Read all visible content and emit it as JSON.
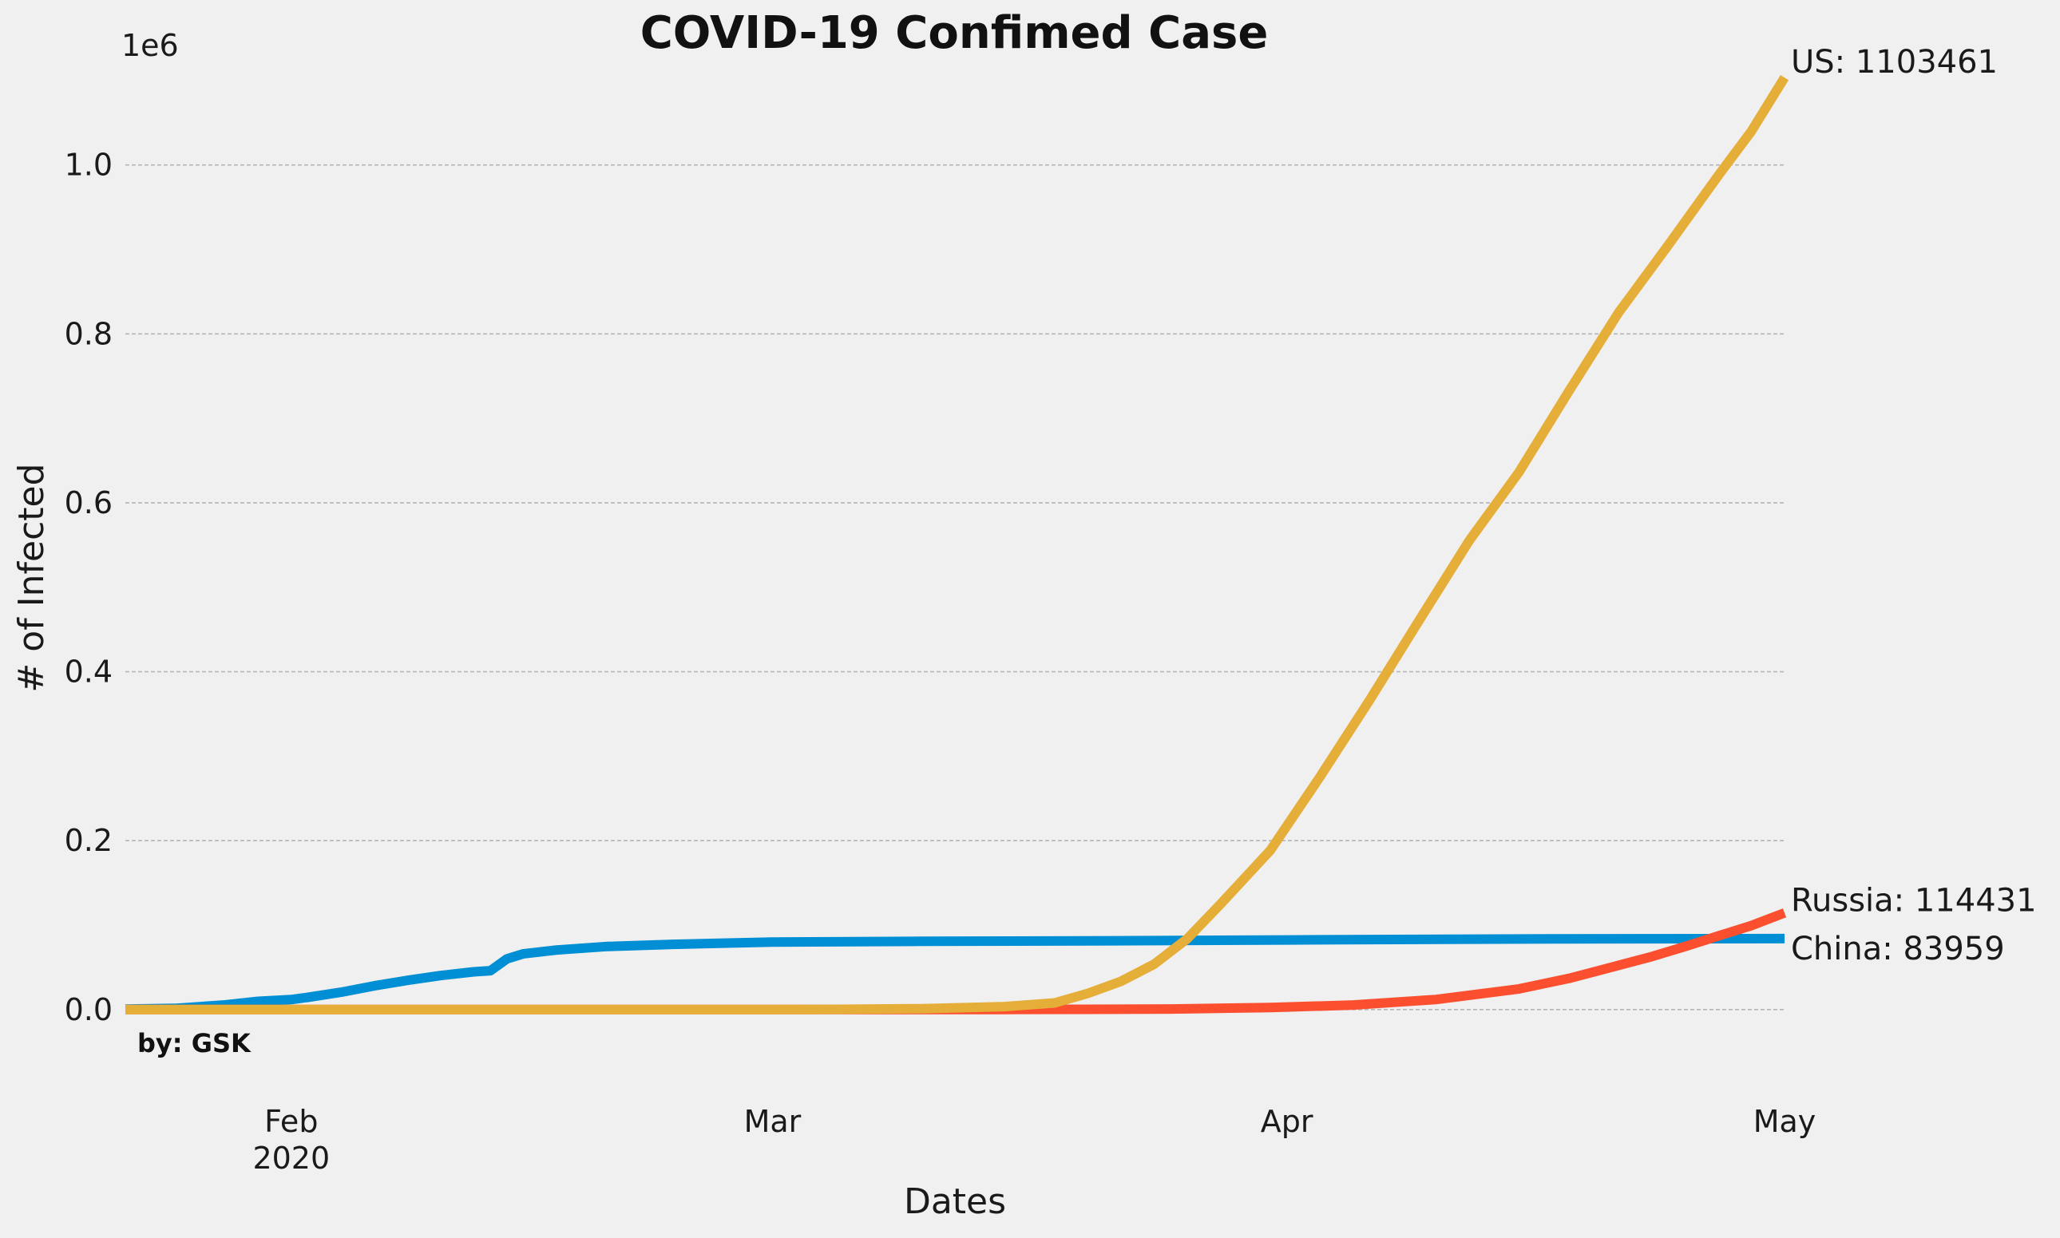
{
  "chart_data": {
    "type": "line",
    "title": "COVID-19 Confimed Case",
    "xlabel": "Dates",
    "ylabel": "# of Infected",
    "y_multiplier_label": "1e6",
    "credit": "by: GSK",
    "x_range": [
      "2020-01-22",
      "2020-05-01"
    ],
    "ylim": [
      -90000,
      1150000
    ],
    "grid": "horizontal",
    "x_ticks": [
      {
        "date": "2020-02-01",
        "label": "Feb",
        "sublabel": "2020"
      },
      {
        "date": "2020-03-01",
        "label": "Mar",
        "sublabel": ""
      },
      {
        "date": "2020-04-01",
        "label": "Apr",
        "sublabel": ""
      },
      {
        "date": "2020-05-01",
        "label": "May",
        "sublabel": ""
      }
    ],
    "y_ticks": [
      {
        "value": 0,
        "label": "0.0"
      },
      {
        "value": 200000,
        "label": "0.2"
      },
      {
        "value": 400000,
        "label": "0.4"
      },
      {
        "value": 600000,
        "label": "0.6"
      },
      {
        "value": 800000,
        "label": "0.8"
      },
      {
        "value": 1000000,
        "label": "1.0"
      }
    ],
    "series": [
      {
        "name": "China",
        "color": "#008fd5",
        "end_label": "China: 83959",
        "points": [
          [
            "2020-01-22",
            548
          ],
          [
            "2020-01-25",
            1400
          ],
          [
            "2020-01-28",
            5500
          ],
          [
            "2020-01-30",
            9700
          ],
          [
            "2020-02-01",
            11800
          ],
          [
            "2020-02-02",
            14400
          ],
          [
            "2020-02-04",
            20500
          ],
          [
            "2020-02-06",
            28000
          ],
          [
            "2020-02-08",
            34600
          ],
          [
            "2020-02-10",
            40200
          ],
          [
            "2020-02-12",
            44700
          ],
          [
            "2020-02-13",
            46000
          ],
          [
            "2020-02-14",
            60000
          ],
          [
            "2020-02-15",
            66000
          ],
          [
            "2020-02-17",
            70500
          ],
          [
            "2020-02-20",
            74600
          ],
          [
            "2020-02-24",
            77200
          ],
          [
            "2020-03-01",
            79900
          ],
          [
            "2020-03-10",
            80800
          ],
          [
            "2020-03-20",
            81300
          ],
          [
            "2020-04-01",
            82400
          ],
          [
            "2020-04-17",
            83700
          ],
          [
            "2020-05-01",
            83959
          ]
        ]
      },
      {
        "name": "Russia",
        "color": "#fc4f30",
        "end_label": "Russia: 114431",
        "points": [
          [
            "2020-01-22",
            0
          ],
          [
            "2020-03-15",
            63
          ],
          [
            "2020-03-20",
            253
          ],
          [
            "2020-03-25",
            658
          ],
          [
            "2020-03-31",
            2337
          ],
          [
            "2020-04-05",
            5389
          ],
          [
            "2020-04-10",
            11917
          ],
          [
            "2020-04-15",
            24490
          ],
          [
            "2020-04-18",
            36793
          ],
          [
            "2020-04-20",
            47121
          ],
          [
            "2020-04-23",
            62773
          ],
          [
            "2020-04-25",
            74588
          ],
          [
            "2020-04-27",
            87147
          ],
          [
            "2020-04-29",
            99399
          ],
          [
            "2020-05-01",
            114431
          ]
        ]
      },
      {
        "name": "US",
        "color": "#e5ae38",
        "end_label": "US: 1103461",
        "points": [
          [
            "2020-01-22",
            1
          ],
          [
            "2020-03-01",
            75
          ],
          [
            "2020-03-05",
            220
          ],
          [
            "2020-03-10",
            1000
          ],
          [
            "2020-03-15",
            3500
          ],
          [
            "2020-03-18",
            7800
          ],
          [
            "2020-03-20",
            19100
          ],
          [
            "2020-03-22",
            33300
          ],
          [
            "2020-03-24",
            53700
          ],
          [
            "2020-03-26",
            83800
          ],
          [
            "2020-03-28",
            124700
          ],
          [
            "2020-03-31",
            188200
          ],
          [
            "2020-04-03",
            275600
          ],
          [
            "2020-04-06",
            366600
          ],
          [
            "2020-04-09",
            461400
          ],
          [
            "2020-04-12",
            555300
          ],
          [
            "2020-04-15",
            636400
          ],
          [
            "2020-04-18",
            732200
          ],
          [
            "2020-04-21",
            825300
          ],
          [
            "2020-04-24",
            905300
          ],
          [
            "2020-04-27",
            987300
          ],
          [
            "2020-04-29",
            1039900
          ],
          [
            "2020-05-01",
            1103461
          ]
        ]
      }
    ]
  }
}
